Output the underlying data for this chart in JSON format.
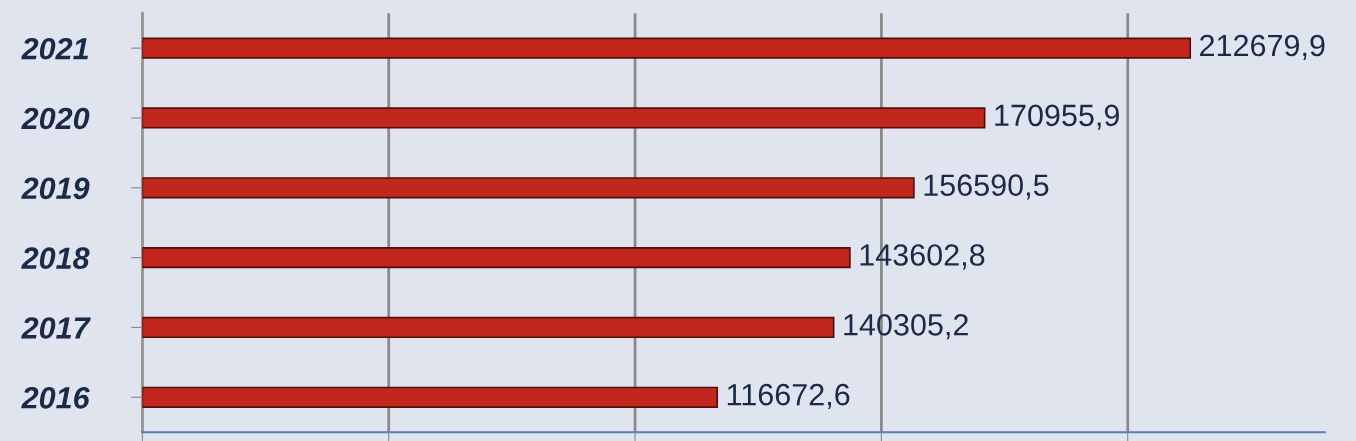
{
  "chart_data": {
    "type": "bar",
    "orientation": "horizontal",
    "categories": [
      "2021",
      "2020",
      "2019",
      "2018",
      "2017",
      "2016"
    ],
    "values": [
      212679.9,
      170955.9,
      156590.5,
      143602.8,
      140305.2,
      116672.6
    ],
    "value_labels": [
      "212679,9",
      "170955,9",
      "156590,5",
      "143602,8",
      "140305,2",
      "116672,6"
    ],
    "color": "#c1271c",
    "xlim": [
      0,
      240000
    ],
    "xticks": [
      {
        "value": 0,
        "label": null
      },
      {
        "value": 50000,
        "label": null
      },
      {
        "value": 100000,
        "label": null
      },
      {
        "value": 150000,
        "label": null
      },
      {
        "value": 200000,
        "label": null
      }
    ],
    "tick_labels": "y",
    "grid": "x",
    "legend": false
  }
}
